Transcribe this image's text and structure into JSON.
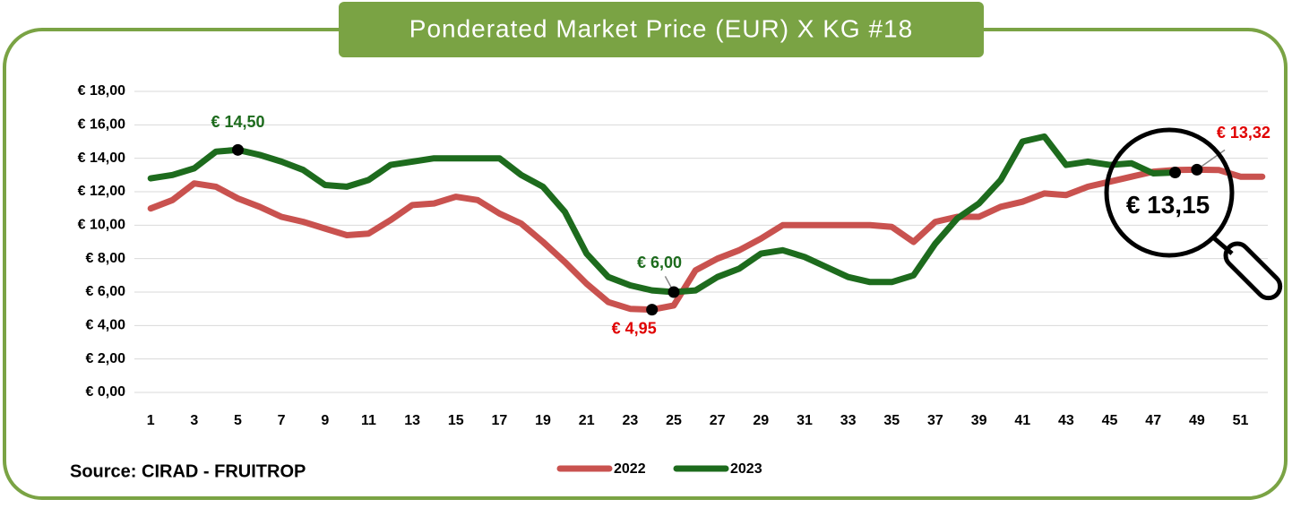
{
  "chart_data": {
    "type": "line",
    "title": "Ponderated Market Price (EUR) X KG #18",
    "source": "Source: CIRAD - FRUITROP",
    "categories": [
      1,
      null,
      3,
      null,
      5,
      null,
      7,
      null,
      9,
      null,
      11,
      null,
      13,
      null,
      15,
      null,
      17,
      null,
      19,
      null,
      21,
      null,
      23,
      null,
      25,
      null,
      27,
      null,
      29,
      null,
      31,
      null,
      33,
      null,
      35,
      null,
      37,
      null,
      39,
      null,
      41,
      null,
      43,
      null,
      45,
      null,
      47,
      null,
      49,
      null,
      51,
      null
    ],
    "series": [
      {
        "name": "2022",
        "color": "#c9524f",
        "values": [
          11.0,
          11.5,
          12.5,
          12.3,
          11.6,
          11.1,
          10.5,
          10.2,
          9.8,
          9.4,
          9.5,
          10.3,
          11.2,
          11.3,
          11.7,
          11.5,
          10.7,
          10.1,
          9.0,
          7.8,
          6.5,
          5.4,
          5.0,
          4.95,
          5.2,
          7.3,
          8.0,
          8.5,
          9.2,
          10.0,
          10.0,
          10.0,
          10.0,
          10.0,
          9.9,
          9.0,
          10.2,
          10.5,
          10.5,
          11.1,
          11.4,
          11.9,
          11.8,
          12.3,
          12.6,
          12.9,
          13.2,
          13.3,
          13.32,
          13.3,
          12.9,
          12.9
        ]
      },
      {
        "name": "2023",
        "color": "#1d6b1d",
        "values": [
          12.8,
          13.0,
          13.4,
          14.4,
          14.5,
          14.2,
          13.8,
          13.3,
          12.4,
          12.3,
          12.7,
          13.6,
          13.8,
          14.0,
          14.0,
          14.0,
          14.0,
          13.0,
          12.3,
          10.8,
          8.3,
          6.9,
          6.4,
          6.1,
          6.0,
          6.1,
          6.9,
          7.4,
          8.3,
          8.5,
          8.1,
          7.5,
          6.9,
          6.6,
          6.6,
          7.0,
          8.9,
          10.4,
          11.3,
          12.7,
          15.0,
          15.3,
          13.6,
          13.8,
          13.6,
          13.7,
          13.1,
          13.15,
          null,
          null,
          null,
          null
        ]
      }
    ],
    "ylim": [
      0,
      18
    ],
    "yticks": [
      {
        "value": 0,
        "label": "€ 0,00"
      },
      {
        "value": 2,
        "label": "€ 2,00"
      },
      {
        "value": 4,
        "label": "€ 4,00"
      },
      {
        "value": 6,
        "label": "€ 6,00"
      },
      {
        "value": 8,
        "label": "€ 8,00"
      },
      {
        "value": 10,
        "label": "€ 10,00"
      },
      {
        "value": 12,
        "label": "€ 12,00"
      },
      {
        "value": 14,
        "label": "€ 14,00"
      },
      {
        "value": 16,
        "label": "€ 16,00"
      },
      {
        "value": 18,
        "label": "€ 18,00"
      }
    ],
    "grid": true,
    "legend": "bottom",
    "annotations": [
      {
        "text": "€ 14,50"
      },
      {
        "text": "€ 6,00"
      },
      {
        "text": "€ 4,95"
      },
      {
        "text": "€ 13,32"
      },
      {
        "text": "€ 13,15"
      }
    ]
  }
}
